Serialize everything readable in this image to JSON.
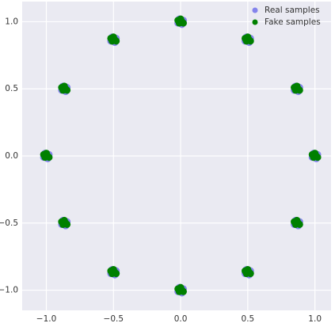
{
  "chart_data": {
    "type": "scatter",
    "xlim": [
      -1.18,
      1.12
    ],
    "ylim": [
      -1.15,
      1.15
    ],
    "xticks": [
      {
        "value": -1,
        "label": "−1.0"
      },
      {
        "value": -0.5,
        "label": "−0.5"
      },
      {
        "value": 0,
        "label": "0.0"
      },
      {
        "value": 0.5,
        "label": "0.5"
      },
      {
        "value": 1,
        "label": "1.0"
      }
    ],
    "yticks": [
      {
        "value": -1,
        "label": "−1.0"
      },
      {
        "value": -0.5,
        "label": "−0.5"
      },
      {
        "value": 0,
        "label": "0.0"
      },
      {
        "value": 0.5,
        "label": "0.5"
      },
      {
        "value": 1,
        "label": "1.0"
      }
    ],
    "grid": true,
    "legend": "upper-right",
    "series": [
      {
        "name": "Real samples",
        "color": "#4040e8",
        "x": [
          0,
          0.02,
          -0.02,
          0.01,
          -0.01,
          0.5,
          0.52,
          0.48,
          0.51,
          0.49,
          0.866,
          0.886,
          0.846,
          0.876,
          0.856,
          1,
          1.02,
          0.98,
          1.01,
          0.99,
          0.866,
          0.886,
          0.846,
          0.876,
          0.856,
          0.5,
          0.52,
          0.48,
          0.51,
          0.49,
          0,
          0.02,
          -0.02,
          0.01,
          -0.01,
          -0.5,
          -0.48,
          -0.52,
          -0.49,
          -0.51,
          -0.866,
          -0.846,
          -0.886,
          -0.856,
          -0.876,
          -1,
          -0.98,
          -1.02,
          -0.99,
          -1.01,
          -0.866,
          -0.846,
          -0.886,
          -0.856,
          -0.876,
          -0.5,
          -0.48,
          -0.52,
          -0.49,
          -0.51
        ],
        "values": [
          1,
          1.01,
          0.99,
          0.98,
          1.02,
          0.866,
          0.876,
          0.856,
          0.846,
          0.886,
          0.5,
          0.51,
          0.49,
          0.48,
          0.52,
          0,
          0.01,
          -0.01,
          -0.02,
          0.02,
          -0.5,
          -0.49,
          -0.51,
          -0.52,
          -0.48,
          -0.866,
          -0.856,
          -0.876,
          -0.886,
          -0.846,
          -1,
          -0.99,
          -1.01,
          -1.02,
          -0.98,
          -0.866,
          -0.856,
          -0.876,
          -0.886,
          -0.846,
          -0.5,
          -0.49,
          -0.51,
          -0.52,
          -0.48,
          0,
          0.01,
          -0.01,
          -0.02,
          0.02,
          0.5,
          0.51,
          0.49,
          0.48,
          0.52,
          0.866,
          0.876,
          0.856,
          0.846,
          0.886
        ]
      },
      {
        "name": "Fake samples",
        "color": "#008000",
        "x": [
          0.01,
          -0.01,
          0.02,
          -0.02,
          0,
          0.51,
          0.49,
          0.52,
          0.48,
          0.5,
          0.876,
          0.856,
          0.886,
          0.846,
          0.866,
          1.01,
          0.99,
          1.02,
          0.98,
          1,
          0.876,
          0.856,
          0.886,
          0.846,
          0.866,
          0.51,
          0.49,
          0.52,
          0.48,
          0.5,
          0.01,
          -0.01,
          0.02,
          -0.02,
          0,
          -0.49,
          -0.51,
          -0.48,
          -0.52,
          -0.5,
          -0.856,
          -0.876,
          -0.846,
          -0.886,
          -0.866,
          -0.99,
          -1.01,
          -0.98,
          -1.02,
          -1,
          -0.856,
          -0.876,
          -0.846,
          -0.886,
          -0.866,
          -0.49,
          -0.51,
          -0.48,
          -0.52,
          -0.5
        ],
        "values": [
          1,
          0.99,
          0.99,
          1.01,
          1.02,
          0.866,
          0.856,
          0.856,
          0.876,
          0.886,
          0.5,
          0.49,
          0.49,
          0.51,
          0.52,
          0,
          -0.01,
          -0.01,
          0.01,
          0.02,
          -0.5,
          -0.51,
          -0.51,
          -0.49,
          -0.48,
          -0.866,
          -0.876,
          -0.876,
          -0.856,
          -0.846,
          -1,
          -1.01,
          -1.01,
          -0.99,
          -0.98,
          -0.866,
          -0.876,
          -0.876,
          -0.856,
          -0.846,
          -0.5,
          -0.51,
          -0.51,
          -0.49,
          -0.48,
          0,
          -0.01,
          -0.01,
          0.01,
          0.02,
          0.5,
          0.49,
          0.49,
          0.51,
          0.52,
          0.866,
          0.856,
          0.856,
          0.876,
          0.886
        ]
      }
    ]
  }
}
